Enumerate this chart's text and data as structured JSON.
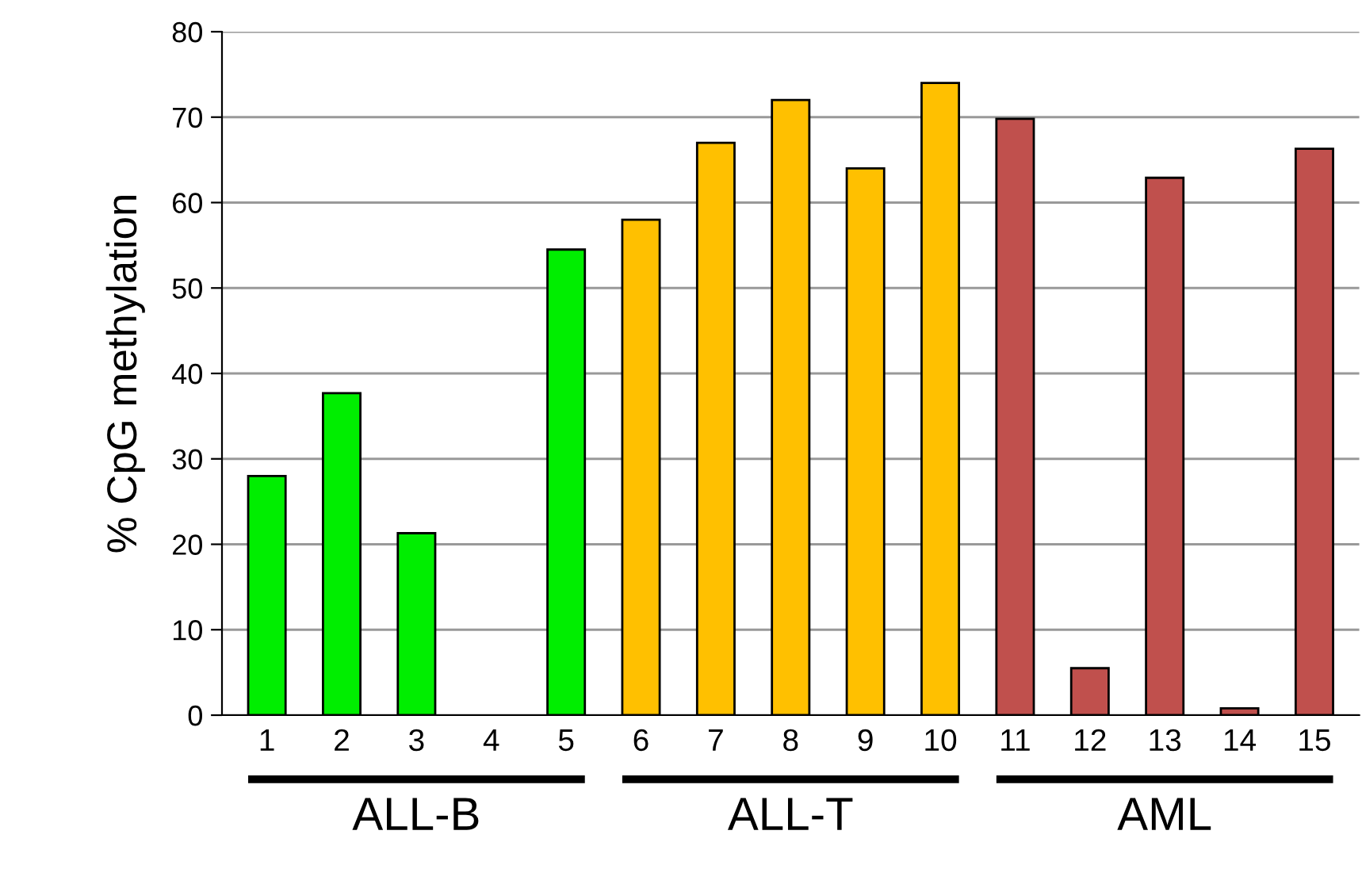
{
  "chart_data": {
    "type": "bar",
    "ylabel": "% CpG methylation",
    "categories": [
      "1",
      "2",
      "3",
      "4",
      "5",
      "6",
      "7",
      "8",
      "9",
      "10",
      "11",
      "12",
      "13",
      "14",
      "15"
    ],
    "values": [
      28,
      37.7,
      21.3,
      null,
      54.5,
      58,
      67,
      72,
      64,
      74,
      69.8,
      5.5,
      62.9,
      0.8,
      66.3
    ],
    "colors": [
      "#00ee00",
      "#00ee00",
      "#00ee00",
      "#00ee00",
      "#00ee00",
      "#ffc000",
      "#ffc000",
      "#ffc000",
      "#ffc000",
      "#ffc000",
      "#c0504d",
      "#c0504d",
      "#c0504d",
      "#c0504d",
      "#c0504d"
    ],
    "ylim": [
      0,
      80
    ],
    "yticks": [
      0,
      10,
      20,
      30,
      40,
      50,
      60,
      70,
      80
    ],
    "grid": "y",
    "annotations": [
      "ALL-B",
      "ALL-T",
      "AML"
    ]
  }
}
